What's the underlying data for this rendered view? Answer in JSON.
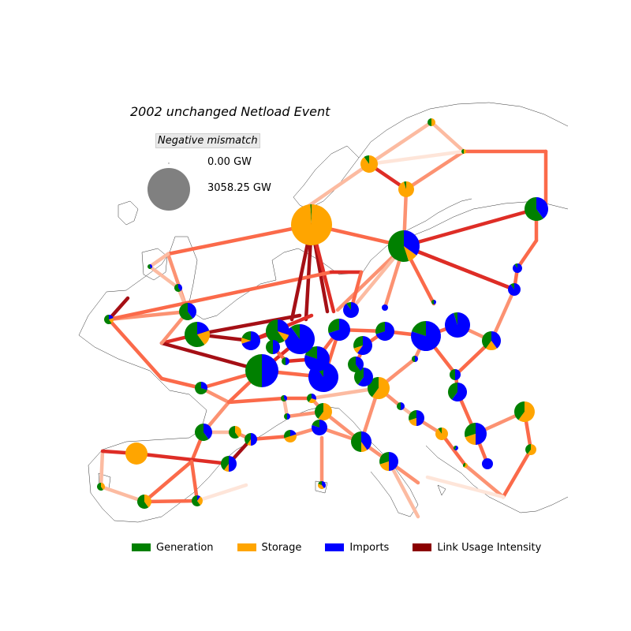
{
  "title": "2002 unchanged Netload Event",
  "size_legend": {
    "title": "Negative mismatch",
    "entries": [
      {
        "label": "0.00 GW",
        "value_gw": 0.0
      },
      {
        "label": "3058.25 GW",
        "value_gw": 3058.25
      }
    ]
  },
  "legend": {
    "items": [
      {
        "label": "Generation",
        "color": "#008000"
      },
      {
        "label": "Storage",
        "color": "#ffa500"
      },
      {
        "label": "Imports",
        "color": "#0000ff"
      },
      {
        "label": "Link Usage Intensity",
        "color": "#8b0000"
      }
    ]
  },
  "colors": {
    "generation": "#008000",
    "storage": "#ffa500",
    "imports": "#0000ff",
    "size_reference": "#808080",
    "coastline": "#333333",
    "link_scale": [
      "#fee5d9",
      "#fcbba1",
      "#fc9272",
      "#fb6a4a",
      "#de2d26",
      "#a50f15"
    ]
  }
}
